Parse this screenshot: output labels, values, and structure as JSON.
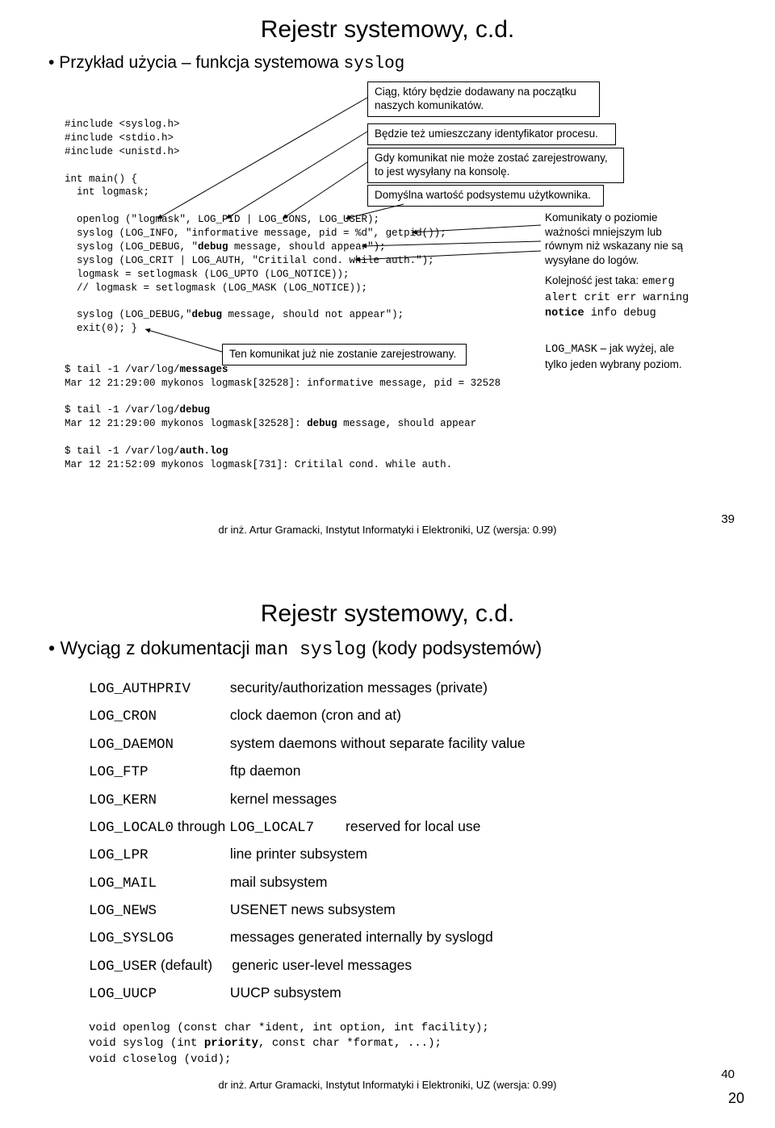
{
  "slide1": {
    "title": "Rejestr systemowy, c.d.",
    "bullet_pre": "Przykład użycia – funkcja systemowa ",
    "bullet_code": "syslog",
    "callouts": {
      "c1": "Ciąg, który będzie dodawany na początku naszych komunikatów.",
      "c2": "Będzie też umieszczany identyfikator procesu.",
      "c3a": "Gdy komunikat nie może zostać zarejestrowany,",
      "c3b": "to jest wysyłany na konsolę.",
      "c4": "Domyślna wartość podsystemu użytkownika.",
      "c5": "Ten komunikat już nie zostanie zarejestrowany."
    },
    "side": {
      "p1a": "Komunikaty o poziomie",
      "p1b": "ważności mniejszym lub",
      "p1c": "równym niż wskazany nie są",
      "p1d": "wysyłane do logów.",
      "p2a": "Kolejność jest taka: ",
      "p2b": "emerg alert crit err warning",
      "p2c": "notice",
      "p2d": " info debug",
      "p3a": "LOG_MASK",
      "p3b": " – jak wyżej, ale tylko jeden wybrany poziom."
    },
    "code": "#include <syslog.h>\n#include <stdio.h>\n#include <unistd.h>\n\nint main() {\n  int logmask;\n\n  openlog (\"logmask\", LOG_PID | LOG_CONS, LOG_USER);\n  syslog (LOG_INFO, \"informative message, pid = %d\", getpid());\n  syslog (LOG_DEBUG, \"debug message, should appear\");\n  syslog (LOG_CRIT | LOG_AUTH, \"Critilal cond. while auth.\");\n  logmask = setlogmask (LOG_UPTO (LOG_NOTICE));\n  // logmask = setlogmask (LOG_MASK (LOG_NOTICE));\n\n  syslog (LOG_DEBUG,\"debug message, should not appear\");\n  exit(0); }\n\n\n$ tail -1 /var/log/messages\nMar 12 21:29:00 mykonos logmask[32528]: informative message, pid = 32528\n\n$ tail -1 /var/log/debug\nMar 12 21:29:00 mykonos logmask[32528]: debug message, should appear\n\n$ tail -1 /var/log/auth.log\nMar 12 21:52:09 mykonos logmask[731]: Critilal cond. while auth.",
    "footer": "dr inż. Artur Gramacki, Instytut Informatyki i Elektroniki, UZ (wersja: 0.99)",
    "pagenum": "39"
  },
  "slide2": {
    "title": "Rejestr systemowy, c.d.",
    "bullet_pre": "Wyciąg z dokumentacji ",
    "bullet_code": "man syslog",
    "bullet_post": " (kody podsystemów)",
    "rows": [
      {
        "k": "LOG_AUTHPRIV",
        "v": "security/authorization messages (private)"
      },
      {
        "k": "LOG_CRON",
        "v": "clock daemon (cron and at)"
      },
      {
        "k": "LOG_DAEMON",
        "v": "system daemons without separate facility value"
      },
      {
        "k": "LOG_FTP",
        "v": "ftp daemon"
      },
      {
        "k": "LOG_KERN",
        "v": "kernel messages"
      }
    ],
    "local_k1": "LOG_LOCAL0",
    "local_mid": " through ",
    "local_k2": "LOG_LOCAL7",
    "local_v": "reserved for local use",
    "rows2": [
      {
        "k": "LOG_LPR",
        "v": "line printer subsystem"
      },
      {
        "k": "LOG_MAIL",
        "v": "mail subsystem"
      },
      {
        "k": "LOG_NEWS",
        "v": "USENET news subsystem"
      },
      {
        "k": "LOG_SYSLOG",
        "v": "messages generated internally by syslogd"
      }
    ],
    "user_k": "LOG_USER",
    "user_def": " (default)",
    "user_v": "generic user-level messages",
    "uucp_k": "LOG_UUCP",
    "uucp_v": "UUCP subsystem",
    "proto": "void openlog (const char *ident, int option, int facility);\nvoid syslog (int priority, const char *format, ...);\nvoid closelog (void);",
    "footer": "dr inż. Artur Gramacki, Instytut Informatyki i Elektroniki, UZ (wersja: 0.99)",
    "pagenum": "40"
  },
  "corner": "20",
  "colors": {
    "fg": "#000000",
    "bg": "#ffffff"
  }
}
